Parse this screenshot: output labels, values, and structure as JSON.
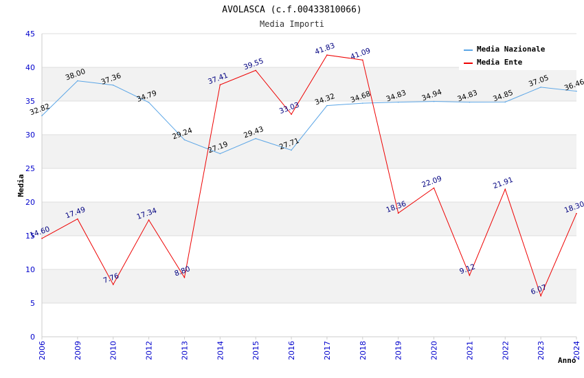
{
  "chart_data": {
    "type": "line",
    "title": "AVOLASCA (c.f.00433810066)",
    "subtitle": "Media Importi",
    "xlabel": "Anno",
    "ylabel": "Media",
    "ylim": [
      0,
      45
    ],
    "yticks": [
      0,
      5,
      10,
      15,
      20,
      25,
      30,
      35,
      40,
      45
    ],
    "grid": true,
    "legend_position": "top-right",
    "categories": [
      "2006",
      "2009",
      "2010",
      "2012",
      "2013",
      "2014",
      "2015",
      "2016",
      "2017",
      "2018",
      "2019",
      "2020",
      "2021",
      "2022",
      "2023",
      "2024"
    ],
    "series": [
      {
        "name": "Media Nazionale",
        "color": "#5aa5e6",
        "label_color": "#000000",
        "values": [
          32.82,
          38.0,
          37.36,
          34.79,
          29.24,
          27.19,
          29.43,
          27.71,
          34.32,
          34.68,
          34.83,
          34.94,
          34.83,
          34.85,
          37.05,
          36.46
        ],
        "labels": [
          "32.82",
          "38.00",
          "37.36",
          "34.79",
          "29.24",
          "27.19",
          "29.43",
          "27.71",
          "34.32",
          "34.68",
          "34.83",
          "34.94",
          "34.83",
          "34.85",
          "37.05",
          "36.46"
        ]
      },
      {
        "name": "Media Ente",
        "color": "#ee0000",
        "label_color": "#000080",
        "values": [
          14.6,
          17.49,
          7.76,
          17.34,
          8.8,
          37.41,
          39.55,
          33.03,
          41.83,
          41.09,
          18.36,
          22.09,
          9.12,
          21.91,
          6.07,
          18.3
        ],
        "labels": [
          "14.60",
          "17.49",
          "7.76",
          "17.34",
          "8.80",
          "37.41",
          "39.55",
          "33.03",
          "41.83",
          "41.09",
          "18.36",
          "22.09",
          "9.12",
          "21.91",
          "6.07",
          "18.30"
        ]
      }
    ]
  }
}
